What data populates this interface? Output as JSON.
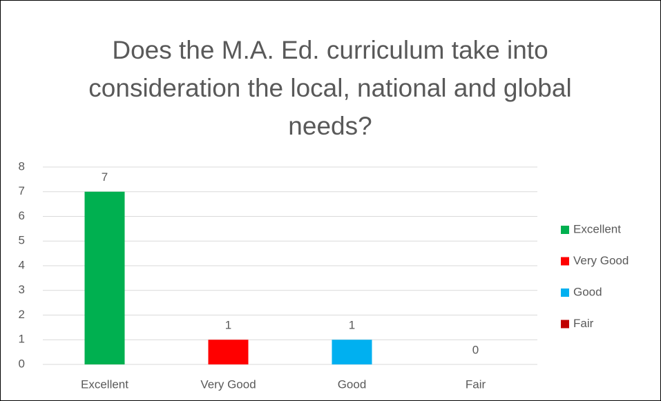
{
  "chart_data": {
    "type": "bar",
    "title": "Does the M.A. Ed. curriculum take into consideration the local, national and global needs?",
    "categories": [
      "Excellent",
      "Very Good",
      "Good",
      "Fair"
    ],
    "values": [
      7,
      1,
      1,
      0
    ],
    "colors": [
      "#00b050",
      "#ff0000",
      "#00b0f0",
      "#c00000"
    ],
    "ylim": [
      0,
      8
    ],
    "yticks": [
      0,
      1,
      2,
      3,
      4,
      5,
      6,
      7,
      8
    ],
    "grid": true,
    "legend": "right"
  }
}
